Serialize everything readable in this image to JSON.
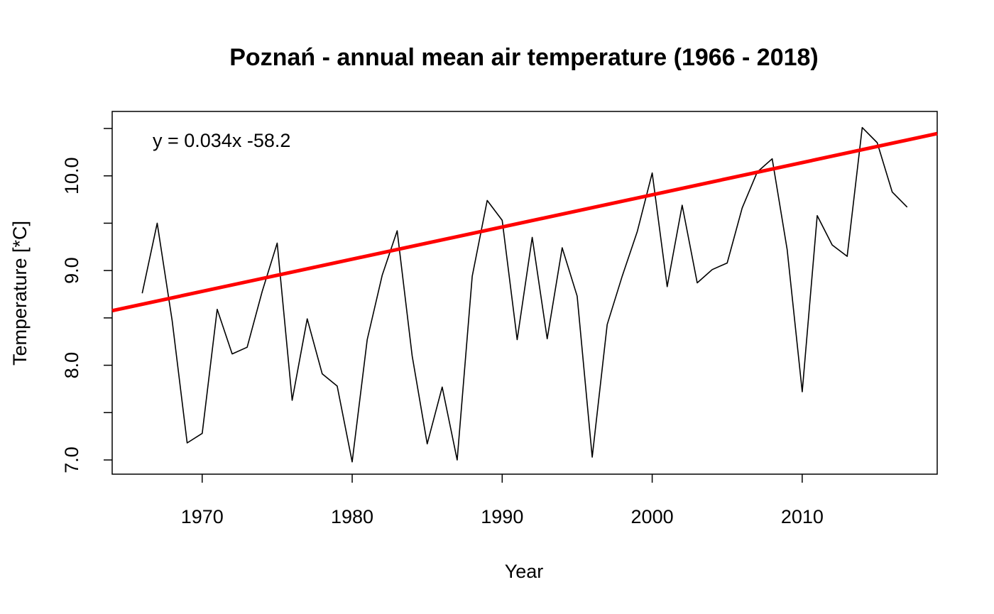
{
  "chart_data": {
    "type": "line",
    "title": "Poznań - annual mean air temperature (1966 - 2018)",
    "xlabel": "Year",
    "ylabel": "Temperature [*C]",
    "xlim": [
      1964,
      2019
    ],
    "ylim": [
      6.85,
      10.68
    ],
    "x_ticks": [
      1970,
      1980,
      1990,
      2000,
      2010
    ],
    "y_ticks": [
      7.0,
      7.5,
      8.0,
      8.5,
      9.0,
      9.5,
      10.0,
      10.5
    ],
    "y_tick_labels": [
      {
        "value": 7.0,
        "label": "7.0"
      },
      {
        "value": 8.0,
        "label": "8.0"
      },
      {
        "value": 9.0,
        "label": "9.0"
      },
      {
        "value": 10.0,
        "label": "10.0"
      }
    ],
    "grid": false,
    "annotation": "y = 0.034x  -58.2",
    "series": [
      {
        "color": "#000000",
        "x": [
          1966,
          1967,
          1968,
          1969,
          1970,
          1971,
          1972,
          1973,
          1974,
          1975,
          1976,
          1977,
          1978,
          1979,
          1980,
          1981,
          1982,
          1983,
          1984,
          1985,
          1986,
          1987,
          1988,
          1989,
          1990,
          1991,
          1992,
          1993,
          1994,
          1995,
          1996,
          1997,
          1998,
          1999,
          2000,
          2001,
          2002,
          2003,
          2004,
          2005,
          2006,
          2007,
          2008,
          2009,
          2010,
          2011,
          2012,
          2013,
          2014,
          2015,
          2016,
          2017
        ],
        "values": [
          8.76,
          9.5,
          8.47,
          7.18,
          7.28,
          8.59,
          8.12,
          8.19,
          8.78,
          9.29,
          7.63,
          8.49,
          7.91,
          7.78,
          6.98,
          8.27,
          8.95,
          9.42,
          8.1,
          7.17,
          7.77,
          7.0,
          8.94,
          9.74,
          9.53,
          8.27,
          9.35,
          8.28,
          9.24,
          8.73,
          7.03,
          8.43,
          8.94,
          9.41,
          10.03,
          8.83,
          9.69,
          8.87,
          9.01,
          9.08,
          9.66,
          10.04,
          10.18,
          9.22,
          7.72,
          9.58,
          9.27,
          9.15,
          10.51,
          10.35,
          9.83,
          9.67
        ]
      }
    ],
    "trend_line": {
      "color": "#ff0000",
      "slope": 0.034,
      "intercept": -58.2
    }
  }
}
